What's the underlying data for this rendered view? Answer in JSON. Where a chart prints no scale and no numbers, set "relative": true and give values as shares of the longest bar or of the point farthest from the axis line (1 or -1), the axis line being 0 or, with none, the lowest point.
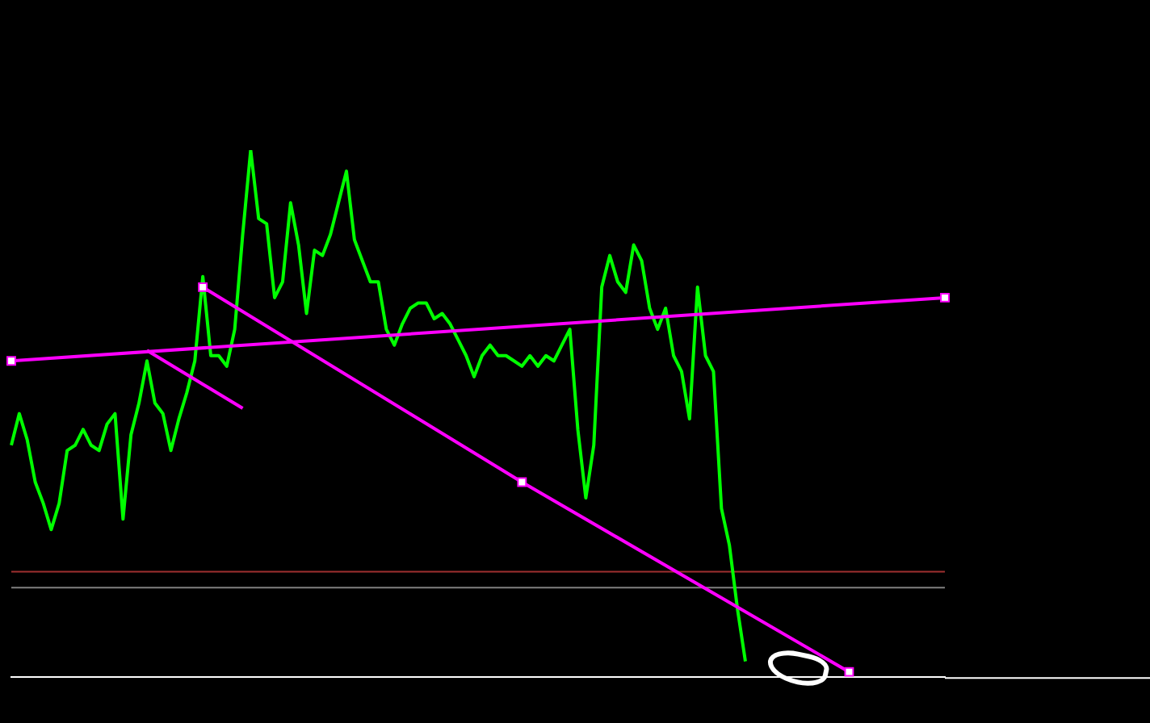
{
  "chart_data": {
    "type": "line",
    "relative": true,
    "legend": false,
    "marker": "none",
    "line_style": "solid",
    "categories": [
      null,
      null,
      null,
      null,
      null,
      null,
      null,
      null,
      null,
      null,
      null,
      null,
      null,
      null,
      null,
      null,
      null,
      null,
      null,
      null,
      null,
      null,
      null,
      null,
      null,
      null,
      null,
      null,
      null,
      null,
      null,
      null,
      null,
      null,
      null,
      null,
      null,
      null,
      null,
      null,
      null,
      null,
      null,
      null,
      null,
      null,
      null,
      null,
      null,
      null,
      null,
      null,
      null,
      null,
      null,
      null,
      null,
      null,
      null,
      null,
      null,
      null,
      null,
      null,
      null,
      null,
      null,
      null,
      null,
      null,
      null,
      null,
      null,
      null,
      null,
      null,
      null,
      null,
      null,
      null,
      null,
      null,
      null,
      null,
      null,
      null,
      null,
      null,
      null,
      null,
      null,
      null,
      null,
      null,
      null,
      null,
      null,
      null,
      null,
      null,
      null,
      null,
      null,
      null,
      null,
      null,
      null,
      null,
      null,
      null,
      null,
      null,
      null,
      null,
      null,
      null,
      null,
      null
    ],
    "series": [
      {
        "color": "#00ff00",
        "values": [
          0.44,
          0.5,
          0.45,
          0.37,
          0.33,
          0.28,
          0.33,
          0.43,
          0.44,
          0.47,
          0.44,
          0.43,
          0.48,
          0.5,
          0.3,
          0.46,
          0.52,
          0.6,
          0.52,
          0.5,
          0.43,
          0.49,
          0.54,
          0.6,
          0.76,
          0.61,
          0.61,
          0.59,
          0.66,
          0.84,
          1,
          0.87,
          0.86,
          0.72,
          0.75,
          0.9,
          0.82,
          0.69,
          0.81,
          0.8,
          0.84,
          0.9,
          0.96,
          0.83,
          0.79,
          0.75,
          0.75,
          0.66,
          0.63,
          0.67,
          0.7,
          0.71,
          0.71,
          0.68,
          0.69,
          0.67,
          0.64,
          0.61,
          0.57,
          0.61,
          0.63,
          0.61,
          0.61,
          0.6,
          0.59,
          0.61,
          0.59,
          0.61,
          0.6,
          0.63,
          0.66,
          0.47,
          0.34,
          0.44,
          0.74,
          0.8,
          0.75,
          0.73,
          0.82,
          0.79,
          0.7,
          0.66,
          0.7,
          0.61,
          0.58,
          0.49,
          0.74,
          0.61,
          0.58,
          0.32,
          0.25,
          0.13,
          0.03,
          null,
          null,
          null,
          null,
          null,
          null,
          null,
          null,
          null,
          null,
          null,
          null,
          null,
          null,
          null,
          null,
          null,
          null,
          null,
          null,
          null,
          null,
          null,
          null,
          null
        ]
      },
      {
        "type": "line",
        "color": "#ff00ff",
        "marker": "square",
        "values": [
          0.6,
          null,
          null,
          null,
          null,
          null,
          null,
          null,
          null,
          null,
          null,
          null,
          null,
          null,
          null,
          null,
          null,
          null,
          null,
          null,
          null,
          null,
          null,
          null,
          null,
          null,
          null,
          null,
          null,
          null,
          null,
          null,
          null,
          null,
          null,
          null,
          null,
          null,
          null,
          null,
          null,
          null,
          null,
          null,
          null,
          null,
          null,
          null,
          null,
          null,
          null,
          null,
          null,
          null,
          null,
          null,
          null,
          null,
          null,
          null,
          null,
          null,
          null,
          null,
          null,
          null,
          null,
          null,
          null,
          null,
          null,
          null,
          null,
          null,
          null,
          null,
          null,
          null,
          null,
          null,
          null,
          null,
          null,
          null,
          null,
          null,
          null,
          null,
          null,
          null,
          null,
          null,
          null,
          null,
          null,
          null,
          null,
          null,
          null,
          null,
          null,
          null,
          null,
          null,
          null,
          null,
          null,
          null,
          null,
          null,
          null,
          null,
          null,
          null,
          null,
          null,
          null,
          0.72
        ]
      },
      {
        "type": "line",
        "color": "#ff00ff",
        "marker": "square",
        "values": [
          null,
          null,
          null,
          null,
          null,
          null,
          null,
          null,
          null,
          null,
          null,
          null,
          null,
          null,
          null,
          null,
          null,
          null,
          null,
          null,
          null,
          null,
          null,
          null,
          0.74,
          null,
          null,
          null,
          null,
          null,
          null,
          null,
          null,
          null,
          null,
          null,
          null,
          null,
          null,
          null,
          null,
          null,
          null,
          null,
          null,
          null,
          null,
          null,
          null,
          null,
          null,
          null,
          null,
          null,
          null,
          null,
          null,
          null,
          null,
          null,
          null,
          null,
          null,
          null,
          0.37,
          null,
          null,
          null,
          null,
          null,
          null,
          null,
          null,
          null,
          null,
          null,
          null,
          null,
          null,
          null,
          null,
          null,
          null,
          null,
          null,
          null,
          null,
          null,
          null,
          null,
          null,
          null,
          null,
          null,
          null,
          null,
          null,
          null,
          null,
          null,
          null,
          null,
          null,
          null,
          null,
          0.01,
          null,
          null,
          null,
          null,
          null,
          null,
          null,
          null,
          null,
          null,
          null,
          null
        ]
      },
      {
        "type": "line",
        "color": "#ff00ff",
        "marker": "none",
        "values": [
          null,
          null,
          null,
          null,
          null,
          null,
          null,
          null,
          null,
          null,
          null,
          null,
          null,
          null,
          null,
          null,
          null,
          0.62,
          null,
          null,
          null,
          null,
          null,
          null,
          null,
          null,
          null,
          null,
          null,
          0.51,
          null,
          null,
          null,
          null,
          null,
          null,
          null,
          null,
          null,
          null,
          null,
          null,
          null,
          null,
          null,
          null,
          null,
          null,
          null,
          null,
          null,
          null,
          null,
          null,
          null,
          null,
          null,
          null,
          null,
          null,
          null,
          null,
          null,
          null,
          null,
          null,
          null,
          null,
          null,
          null,
          null,
          null,
          null,
          null,
          null,
          null,
          null,
          null,
          null,
          null,
          null,
          null,
          null,
          null,
          null,
          null,
          null,
          null,
          null,
          null,
          null,
          null,
          null,
          null,
          null,
          null,
          null,
          null,
          null,
          null,
          null,
          null,
          null,
          null,
          null,
          null,
          null,
          null,
          null,
          null,
          null,
          null,
          null,
          null,
          null,
          null,
          null,
          null
        ]
      }
    ],
    "ref_lines": [
      {
        "axis": "y",
        "value": 0.2,
        "color": "#a03030"
      },
      {
        "axis": "y",
        "value": 0.17,
        "color": "#808080"
      }
    ]
  }
}
